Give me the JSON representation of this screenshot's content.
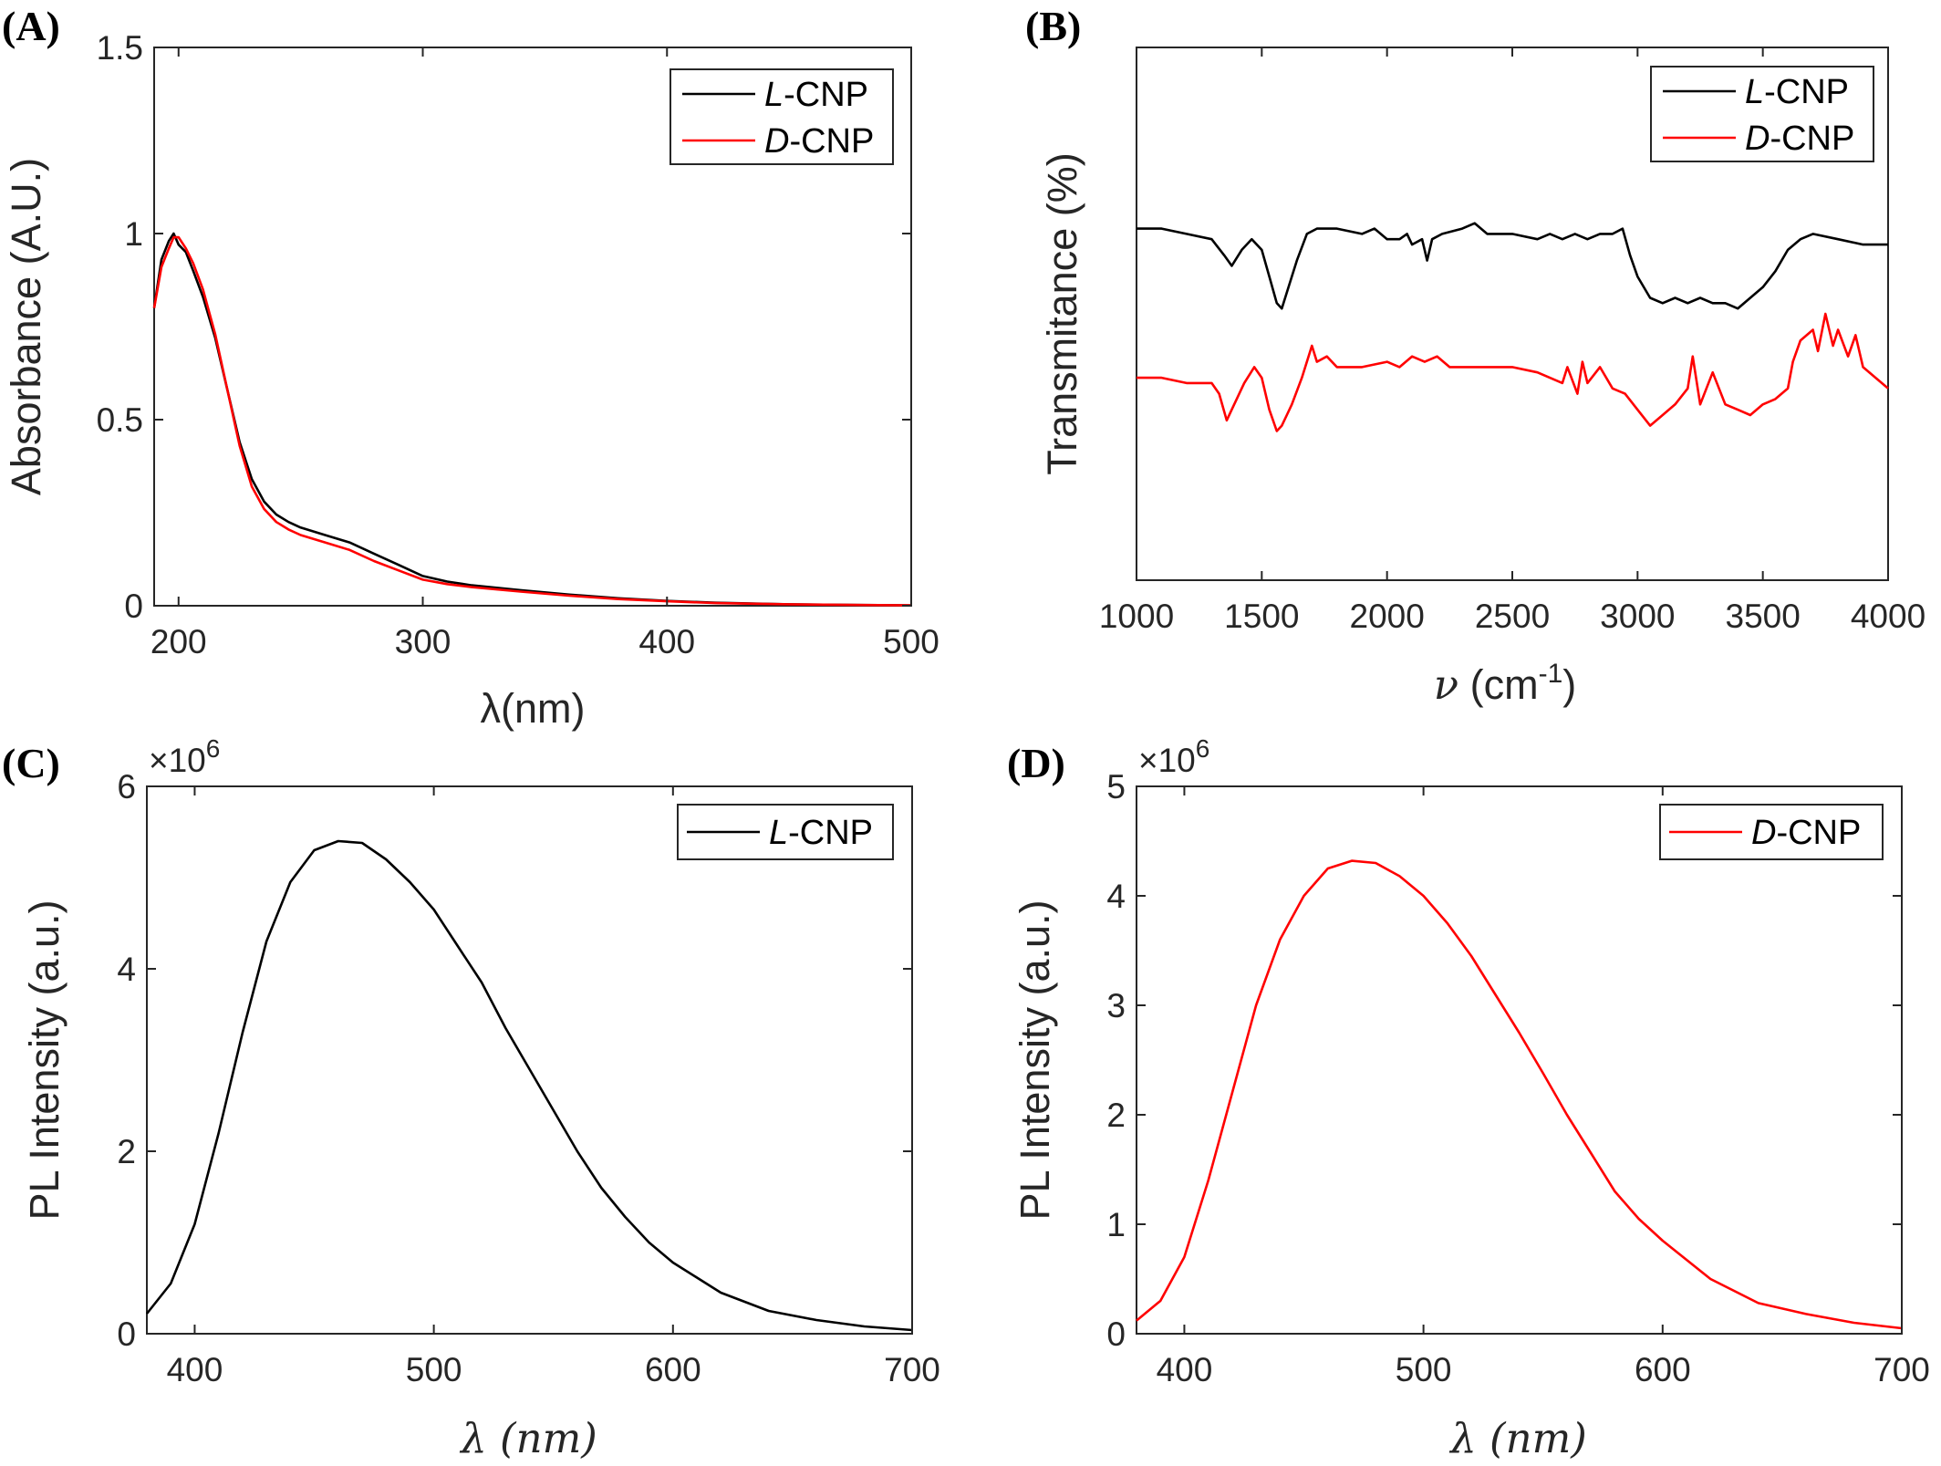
{
  "chart_data": [
    {
      "panel": "(A)",
      "type": "line",
      "xlabel": "λ(nm)",
      "ylabel": "Absorbance (A.U.)",
      "xlim": [
        190,
        500
      ],
      "ylim": [
        0,
        1.5
      ],
      "xticks": [
        200,
        300,
        400,
        500
      ],
      "yticks": [
        0,
        0.5,
        1,
        1.5
      ],
      "yticklabels": [
        "0",
        "0.5",
        "1",
        "1.5"
      ],
      "legend": "top-right",
      "series": [
        {
          "name": "L-CNP",
          "name_italic": "L",
          "name_rest": "-CNP",
          "color": "#000000",
          "x": [
            190,
            193,
            196,
            198,
            200,
            203,
            206,
            210,
            215,
            220,
            225,
            230,
            235,
            240,
            245,
            250,
            260,
            270,
            280,
            290,
            300,
            310,
            320,
            340,
            360,
            380,
            400,
            420,
            450,
            480,
            500
          ],
          "y": [
            0.8,
            0.93,
            0.98,
            1.0,
            0.97,
            0.95,
            0.9,
            0.83,
            0.72,
            0.58,
            0.44,
            0.34,
            0.28,
            0.245,
            0.225,
            0.21,
            0.19,
            0.17,
            0.14,
            0.11,
            0.08,
            0.065,
            0.055,
            0.042,
            0.03,
            0.02,
            0.013,
            0.008,
            0.004,
            0.002,
            0.001
          ]
        },
        {
          "name": "D-CNP",
          "name_italic": "D",
          "name_rest": "-CNP",
          "color": "#ff0000",
          "x": [
            190,
            193,
            196,
            198,
            200,
            203,
            206,
            210,
            215,
            220,
            225,
            230,
            235,
            240,
            245,
            250,
            260,
            270,
            280,
            290,
            300,
            310,
            320,
            340,
            360,
            380,
            400,
            420,
            450,
            480,
            500
          ],
          "y": [
            0.8,
            0.91,
            0.96,
            0.99,
            0.99,
            0.96,
            0.92,
            0.85,
            0.73,
            0.58,
            0.43,
            0.32,
            0.26,
            0.225,
            0.205,
            0.19,
            0.17,
            0.15,
            0.12,
            0.095,
            0.07,
            0.058,
            0.05,
            0.038,
            0.027,
            0.018,
            0.012,
            0.007,
            0.004,
            0.002,
            0.001
          ]
        }
      ]
    },
    {
      "panel": "(B)",
      "type": "line",
      "xlabel_sym": "ν",
      "xlabel_unit": " (cm",
      "xlabel_sup": "-1",
      "xlabel_close": ")",
      "ylabel": "Transmitance (%)",
      "xlim": [
        1000,
        4000
      ],
      "ylim": [
        0,
        100
      ],
      "xticks": [
        1000,
        1500,
        2000,
        2500,
        3000,
        3500,
        4000
      ],
      "yticks": [],
      "legend": "top-right",
      "series": [
        {
          "name": "L-CNP",
          "name_italic": "L",
          "name_rest": "-CNP",
          "color": "#000000",
          "x": [
            1000,
            1100,
            1200,
            1300,
            1350,
            1380,
            1420,
            1460,
            1500,
            1530,
            1560,
            1580,
            1600,
            1640,
            1680,
            1720,
            1800,
            1900,
            1950,
            2000,
            2050,
            2080,
            2100,
            2140,
            2160,
            2180,
            2220,
            2300,
            2350,
            2400,
            2500,
            2600,
            2650,
            2700,
            2750,
            2800,
            2850,
            2900,
            2940,
            2970,
            3000,
            3050,
            3100,
            3150,
            3200,
            3250,
            3300,
            3350,
            3400,
            3450,
            3500,
            3550,
            3600,
            3650,
            3700,
            3800,
            3900,
            4000
          ],
          "y": [
            66,
            66,
            65,
            64,
            61,
            59,
            62,
            64,
            62,
            57,
            52,
            51,
            54,
            60,
            65,
            66,
            66,
            65,
            66,
            64,
            64,
            65,
            63,
            64,
            60,
            64,
            65,
            66,
            67,
            65,
            65,
            64,
            65,
            64,
            65,
            64,
            65,
            65,
            66,
            61,
            57,
            53,
            52,
            53,
            52,
            53,
            52,
            52,
            51,
            53,
            55,
            58,
            62,
            64,
            65,
            64,
            63,
            63
          ]
        },
        {
          "name": "D-CNP",
          "name_italic": "D",
          "name_rest": "-CNP",
          "color": "#ff0000",
          "x": [
            1000,
            1100,
            1200,
            1300,
            1330,
            1360,
            1390,
            1430,
            1470,
            1500,
            1530,
            1560,
            1580,
            1600,
            1620,
            1660,
            1700,
            1720,
            1760,
            1800,
            1900,
            2000,
            2050,
            2100,
            2150,
            2200,
            2250,
            2300,
            2400,
            2500,
            2600,
            2700,
            2720,
            2760,
            2780,
            2800,
            2850,
            2900,
            2950,
            3000,
            3050,
            3100,
            3150,
            3200,
            3220,
            3250,
            3300,
            3350,
            3400,
            3450,
            3500,
            3550,
            3600,
            3620,
            3650,
            3700,
            3720,
            3750,
            3780,
            3800,
            3840,
            3870,
            3900,
            3950,
            4000
          ],
          "y": [
            38,
            38,
            37,
            37,
            35,
            30,
            33,
            37,
            40,
            38,
            32,
            28,
            29,
            31,
            33,
            38,
            44,
            41,
            42,
            40,
            40,
            41,
            40,
            42,
            41,
            42,
            40,
            40,
            40,
            40,
            39,
            37,
            40,
            35,
            41,
            37,
            40,
            36,
            35,
            32,
            29,
            31,
            33,
            36,
            42,
            33,
            39,
            33,
            32,
            31,
            33,
            34,
            36,
            41,
            45,
            47,
            43,
            50,
            44,
            47,
            42,
            46,
            40,
            38,
            36
          ]
        }
      ]
    },
    {
      "panel": "(C)",
      "type": "line",
      "xlabel": "λ (nm)",
      "ylabel": "PL Intensity (a.u.)",
      "exponent_base": "×10",
      "exponent": "6",
      "xlim": [
        380,
        700
      ],
      "ylim": [
        0,
        6
      ],
      "xticks": [
        400,
        500,
        600,
        700
      ],
      "yticks": [
        0,
        2,
        4,
        6
      ],
      "yticklabels": [
        "0",
        "2",
        "4",
        "6"
      ],
      "legend": "top-right",
      "series": [
        {
          "name": "L-CNP",
          "name_italic": "L",
          "name_rest": "-CNP",
          "color": "#000000",
          "x": [
            380,
            390,
            400,
            410,
            420,
            430,
            440,
            450,
            460,
            470,
            480,
            490,
            500,
            510,
            520,
            530,
            540,
            550,
            560,
            570,
            580,
            590,
            600,
            620,
            640,
            660,
            680,
            700
          ],
          "y": [
            0.22,
            0.55,
            1.2,
            2.2,
            3.3,
            4.3,
            4.95,
            5.3,
            5.4,
            5.38,
            5.2,
            4.95,
            4.65,
            4.25,
            3.85,
            3.35,
            2.9,
            2.45,
            2.0,
            1.6,
            1.28,
            1.0,
            0.78,
            0.45,
            0.25,
            0.15,
            0.08,
            0.04
          ]
        }
      ]
    },
    {
      "panel": "(D)",
      "type": "line",
      "xlabel": "λ (nm)",
      "ylabel": "PL Intensity (a.u.)",
      "exponent_base": "×10",
      "exponent": "6",
      "xlim": [
        380,
        700
      ],
      "ylim": [
        0,
        5
      ],
      "xticks": [
        400,
        500,
        600,
        700
      ],
      "yticks": [
        0,
        1,
        2,
        3,
        4,
        5
      ],
      "yticklabels": [
        "0",
        "1",
        "2",
        "3",
        "4",
        "5"
      ],
      "legend": "top-right",
      "series": [
        {
          "name": "D-CNP",
          "name_italic": "D",
          "name_rest": "-CNP",
          "color": "#ff0000",
          "x": [
            380,
            390,
            400,
            410,
            420,
            430,
            440,
            450,
            460,
            470,
            480,
            490,
            500,
            510,
            520,
            530,
            540,
            550,
            560,
            570,
            580,
            590,
            600,
            620,
            640,
            660,
            680,
            700
          ],
          "y": [
            0.12,
            0.3,
            0.7,
            1.4,
            2.2,
            3.0,
            3.6,
            4.0,
            4.25,
            4.32,
            4.3,
            4.18,
            4.0,
            3.75,
            3.45,
            3.1,
            2.75,
            2.38,
            2.0,
            1.65,
            1.3,
            1.05,
            0.85,
            0.5,
            0.28,
            0.18,
            0.1,
            0.05
          ]
        }
      ]
    }
  ]
}
